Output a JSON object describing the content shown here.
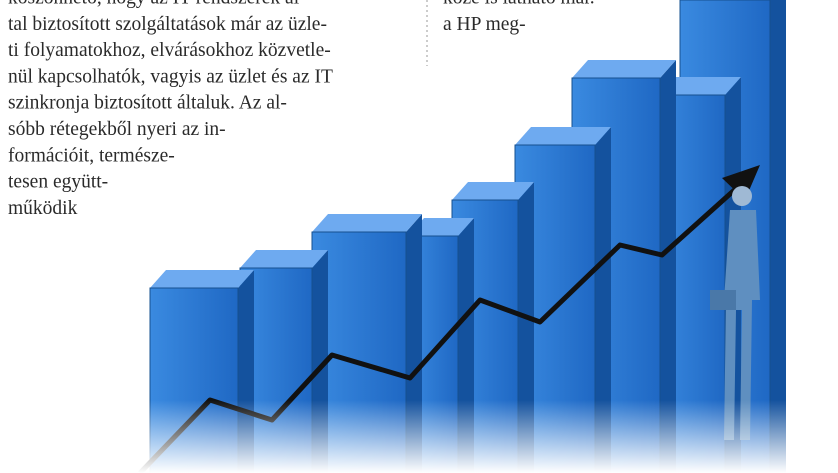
{
  "left_column": {
    "lines": [
      "köszönhető, hogy az IT-rendszerek ál-",
      "tal biztosított szolgáltatások már az üzle-",
      "ti folyamatokhoz, elvárásokhoz közvetle-",
      "nül kapcsolhatók, vagyis az üzlet és az IT",
      "szinkronja biztosított általuk. Az al-",
      "sóbb rétegekből nyeri az in-",
      "formációit, természe-",
      "tesen együtt-",
      "működik"
    ]
  },
  "right_column": {
    "lines": [
      "közé is látható már.",
      "a HP meg-"
    ]
  }
}
